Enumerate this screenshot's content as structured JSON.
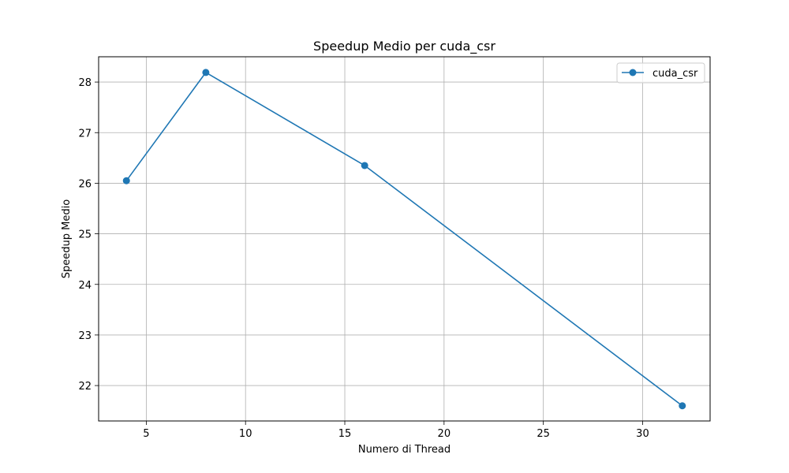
{
  "chart_data": {
    "type": "line",
    "title": "Speedup Medio per cuda_csr",
    "xlabel": "Numero di Thread",
    "ylabel": "Speedup Medio",
    "xlim": [
      2.6,
      33.4
    ],
    "ylim": [
      21.3,
      28.5
    ],
    "xticks": [
      5,
      10,
      15,
      20,
      25,
      30
    ],
    "yticks": [
      22,
      23,
      24,
      25,
      26,
      27,
      28
    ],
    "grid": true,
    "legend_position": "top-right",
    "series": [
      {
        "name": "cuda_csr",
        "color": "#1f77b4",
        "marker": "circle",
        "x": [
          4,
          8,
          16,
          32
        ],
        "y": [
          26.05,
          28.19,
          26.35,
          21.6
        ]
      }
    ]
  }
}
